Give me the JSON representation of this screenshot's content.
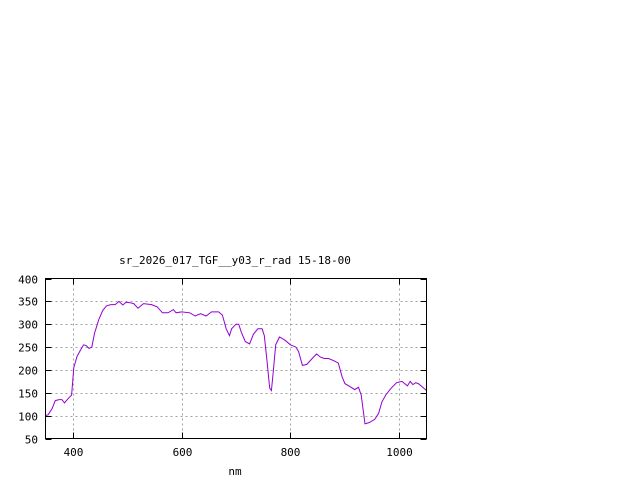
{
  "chart_data": {
    "type": "line",
    "title": "sr_2026_017_TGF__y03_r_rad 15-18-00",
    "xlabel": "nm",
    "ylabel": "",
    "xlim": [
      350,
      1050
    ],
    "ylim": [
      50,
      400
    ],
    "xticks": [
      400,
      600,
      800,
      1000
    ],
    "yticks": [
      50,
      100,
      150,
      200,
      250,
      300,
      350,
      400
    ],
    "grid": true,
    "line_color": "#9400d3",
    "series": [
      {
        "x": [
          350,
          355,
          362,
          368,
          375,
          380,
          385,
          392,
          398,
          402,
          408,
          415,
          420,
          425,
          430,
          435,
          440,
          448,
          455,
          462,
          470,
          478,
          485,
          492,
          498,
          505,
          512,
          520,
          530,
          545,
          555,
          565,
          575,
          585,
          590,
          600,
          615,
          625,
          635,
          645,
          655,
          668,
          675,
          682,
          688,
          692,
          700,
          705,
          710,
          717,
          725,
          732,
          740,
          748,
          752,
          757,
          762,
          765,
          768,
          773,
          780,
          790,
          800,
          810,
          815,
          822,
          830,
          840,
          848,
          855,
          862,
          870,
          880,
          888,
          895,
          900,
          910,
          918,
          925,
          930,
          937,
          945,
          955,
          962,
          968,
          975,
          985,
          995,
          1005,
          1010,
          1015,
          1020,
          1025,
          1030,
          1035,
          1040,
          1050
        ],
        "y": [
          100,
          102,
          115,
          133,
          135,
          135,
          128,
          138,
          145,
          205,
          230,
          245,
          255,
          253,
          247,
          250,
          280,
          310,
          330,
          340,
          343,
          343,
          350,
          342,
          348,
          347,
          345,
          335,
          345,
          343,
          338,
          325,
          325,
          332,
          325,
          327,
          325,
          318,
          323,
          318,
          327,
          327,
          320,
          290,
          275,
          290,
          300,
          300,
          282,
          262,
          257,
          278,
          290,
          290,
          275,
          220,
          160,
          155,
          190,
          255,
          272,
          265,
          255,
          250,
          240,
          210,
          212,
          225,
          235,
          228,
          225,
          225,
          220,
          215,
          185,
          170,
          163,
          157,
          162,
          145,
          82,
          85,
          92,
          105,
          130,
          145,
          160,
          172,
          175,
          170,
          165,
          175,
          168,
          172,
          170,
          165,
          155
        ]
      }
    ]
  }
}
